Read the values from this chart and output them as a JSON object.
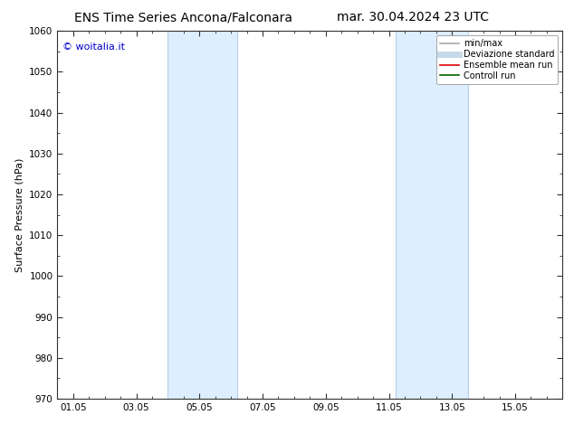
{
  "title_left": "ENS Time Series Ancona/Falconara",
  "title_right": "mar. 30.04.2024 23 UTC",
  "ylabel": "Surface Pressure (hPa)",
  "ylim": [
    970,
    1060
  ],
  "yticks": [
    970,
    980,
    990,
    1000,
    1010,
    1020,
    1030,
    1040,
    1050,
    1060
  ],
  "xtick_labels": [
    "01.05",
    "03.05",
    "05.05",
    "07.05",
    "09.05",
    "11.05",
    "13.05",
    "15.05"
  ],
  "xtick_positions": [
    0,
    2,
    4,
    6,
    8,
    10,
    12,
    14
  ],
  "xlim": [
    -0.5,
    15.5
  ],
  "shaded_bands": [
    {
      "x_start": 3.0,
      "x_end": 5.2
    },
    {
      "x_start": 10.2,
      "x_end": 12.5
    }
  ],
  "shaded_color": "#ddeeff",
  "shaded_edge_color": "#b8cfe8",
  "background_color": "#ffffff",
  "tick_color": "#333333",
  "spine_color": "#333333",
  "watermark_text": "© woitalia.it",
  "watermark_color": "#0000cc",
  "legend_entries": [
    {
      "label": "min/max",
      "color": "#aaaaaa",
      "lw": 1.2
    },
    {
      "label": "Deviazione standard",
      "color": "#c8daea",
      "lw": 5
    },
    {
      "label": "Ensemble mean run",
      "color": "#dd0000",
      "lw": 1.2
    },
    {
      "label": "Controll run",
      "color": "#006600",
      "lw": 1.2
    }
  ],
  "title_fontsize": 10,
  "ylabel_fontsize": 8,
  "tick_fontsize": 7.5,
  "watermark_fontsize": 8,
  "legend_fontsize": 7
}
